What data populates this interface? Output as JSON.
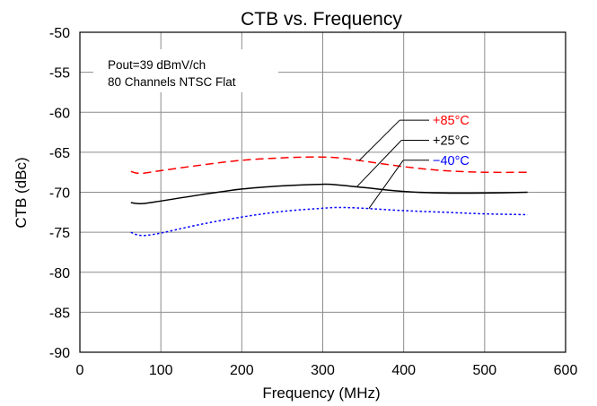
{
  "chart_data": {
    "type": "line",
    "title": "CTB vs. Frequency",
    "xlabel": "Frequency (MHz)",
    "ylabel": "CTB (dBc)",
    "xlim": [
      0,
      600
    ],
    "ylim": [
      -90,
      -50
    ],
    "xticks": [
      0,
      100,
      200,
      300,
      400,
      500,
      600
    ],
    "yticks": [
      -50,
      -55,
      -60,
      -65,
      -70,
      -75,
      -80,
      -85,
      -90
    ],
    "grid": true,
    "annotation_lines": [
      "Pout=39 dBmV/ch",
      "80 Channels NTSC Flat"
    ],
    "series": [
      {
        "name": "+85°C",
        "color": "#ff0000",
        "dash": "dashed",
        "x": [
          63,
          70,
          80,
          100,
          150,
          200,
          250,
          280,
          300,
          320,
          350,
          400,
          450,
          500,
          553
        ],
        "y": [
          -67.4,
          -67.6,
          -67.6,
          -67.3,
          -66.6,
          -66.0,
          -65.7,
          -65.6,
          -65.6,
          -65.7,
          -66.1,
          -66.8,
          -67.3,
          -67.5,
          -67.5
        ]
      },
      {
        "name": "+25°C",
        "color": "#000000",
        "dash": "solid",
        "x": [
          63,
          70,
          80,
          100,
          150,
          200,
          250,
          300,
          320,
          350,
          400,
          450,
          500,
          553
        ],
        "y": [
          -71.3,
          -71.4,
          -71.4,
          -71.1,
          -70.3,
          -69.6,
          -69.2,
          -69.0,
          -69.1,
          -69.4,
          -69.9,
          -70.1,
          -70.1,
          -70.0
        ]
      },
      {
        "name": "−40°C",
        "color": "#0000ff",
        "dash": "dotted",
        "x": [
          63,
          70,
          80,
          100,
          150,
          200,
          250,
          300,
          320,
          350,
          400,
          450,
          500,
          553
        ],
        "y": [
          -75.0,
          -75.3,
          -75.4,
          -75.1,
          -74.0,
          -73.1,
          -72.4,
          -72.0,
          -71.9,
          -72.0,
          -72.3,
          -72.5,
          -72.7,
          -72.8
        ]
      }
    ]
  }
}
